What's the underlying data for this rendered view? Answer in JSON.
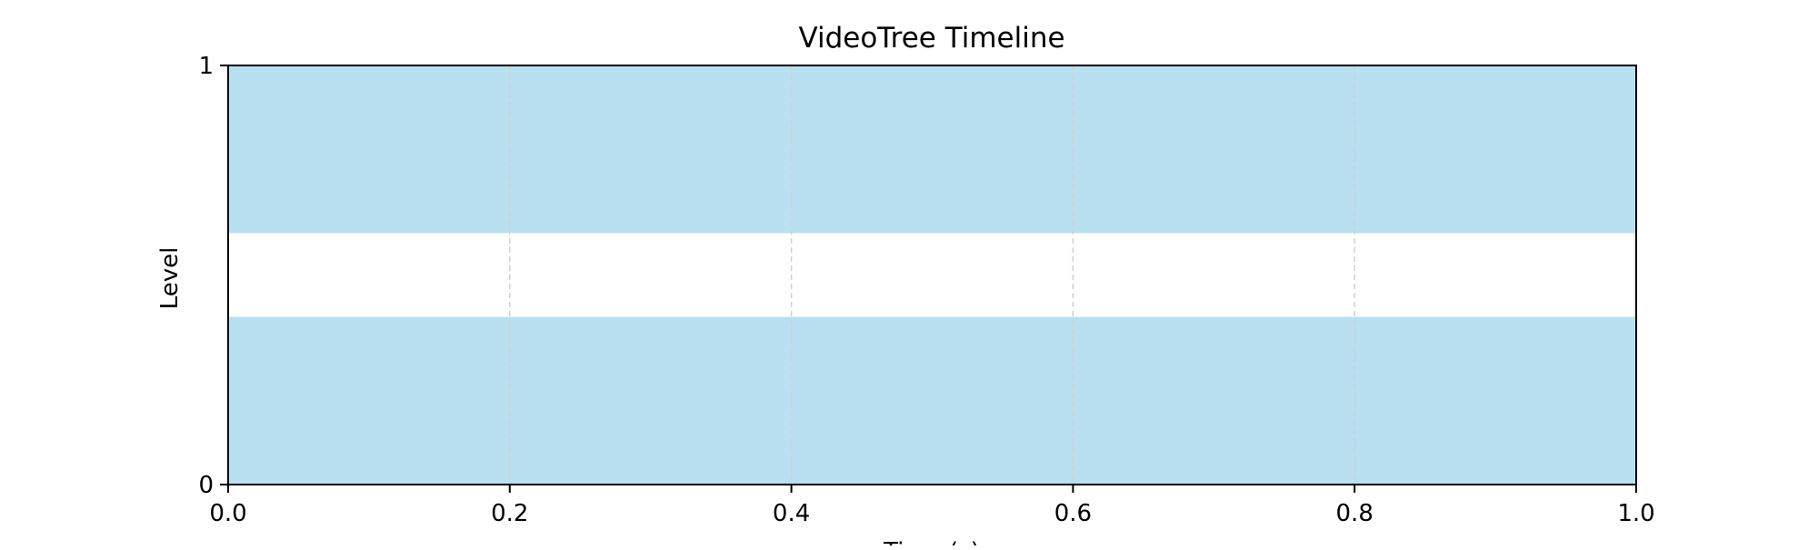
{
  "chart_data": {
    "type": "bar",
    "title": "VideoTree Timeline",
    "xlabel": "Time (s)",
    "ylabel": "Level",
    "xlim": [
      0.0,
      1.0
    ],
    "ylim": [
      0,
      1
    ],
    "x_ticks": [
      "0.0",
      "0.2",
      "0.4",
      "0.6",
      "0.8",
      "1.0"
    ],
    "y_ticks": [
      "0",
      "1"
    ],
    "grid": "vertical dashed",
    "bars": [
      {
        "start": 0.0,
        "end": 1.0,
        "y_bottom": 0.0,
        "y_top": 0.4
      },
      {
        "start": 0.0,
        "end": 1.0,
        "y_bottom": 0.6,
        "y_top": 1.0
      }
    ],
    "colors": {
      "bar": "#b8e0f1",
      "grid": "#d0d0d0",
      "axis": "#000000"
    }
  }
}
